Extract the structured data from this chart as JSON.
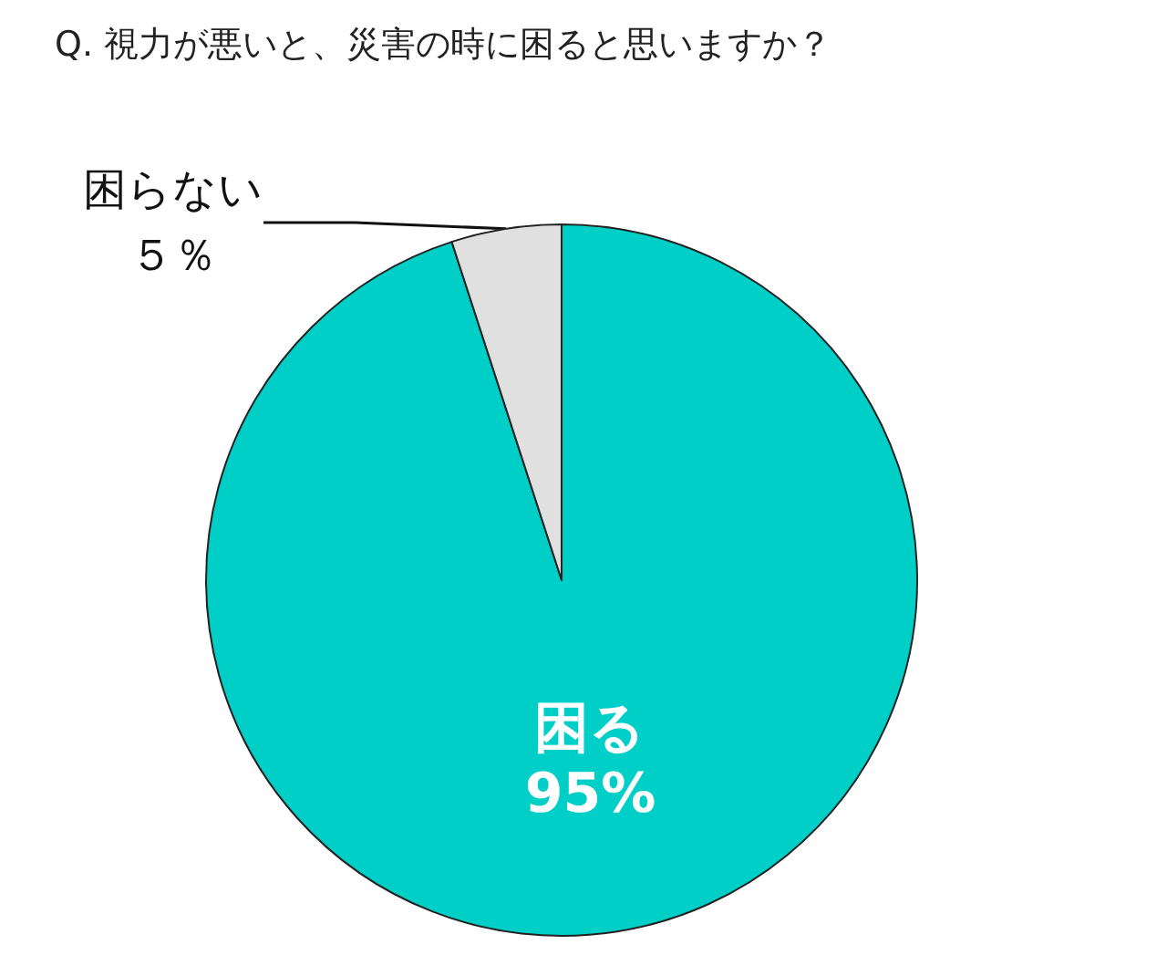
{
  "chart_data": {
    "type": "pie",
    "title": "Q. 視力が悪いと、災害の時に困ると思いますか？",
    "categories": [
      "困る",
      "困らない"
    ],
    "values": [
      95,
      5
    ],
    "colors": [
      "#00cfc8",
      "#e0e0e0"
    ],
    "value_labels": [
      "95%",
      "５％"
    ],
    "legend": false
  }
}
